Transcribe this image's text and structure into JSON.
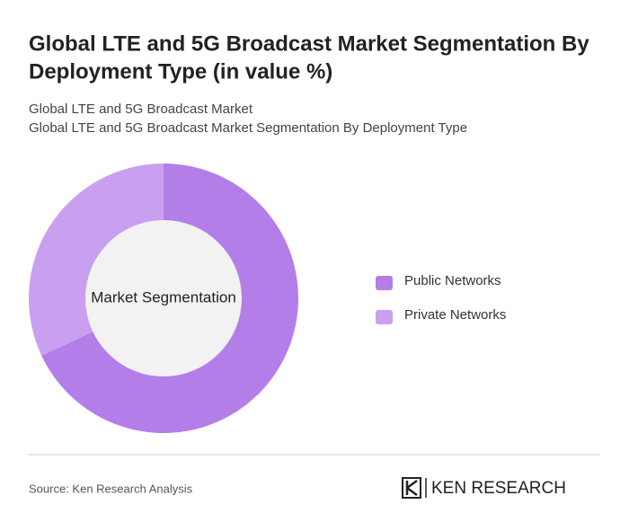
{
  "chart_data": {
    "type": "donut",
    "title_lines": [
      "Global LTE and 5G Broadcast Market Segmentation By",
      "Deployment Type (in value %)"
    ],
    "subtitle_lines": [
      "Global LTE and 5G Broadcast Market",
      "Global LTE and 5G Broadcast Market Segmentation By Deployment Type"
    ],
    "center_label": "Market Segmentation",
    "categories": [
      "Public Networks",
      "Private Networks"
    ],
    "values": [
      68,
      32
    ],
    "colors": [
      "#b47ee9",
      "#c9a0f0"
    ],
    "source": "Source: Ken Research Analysis",
    "logo": "KEN RESEARCH"
  }
}
